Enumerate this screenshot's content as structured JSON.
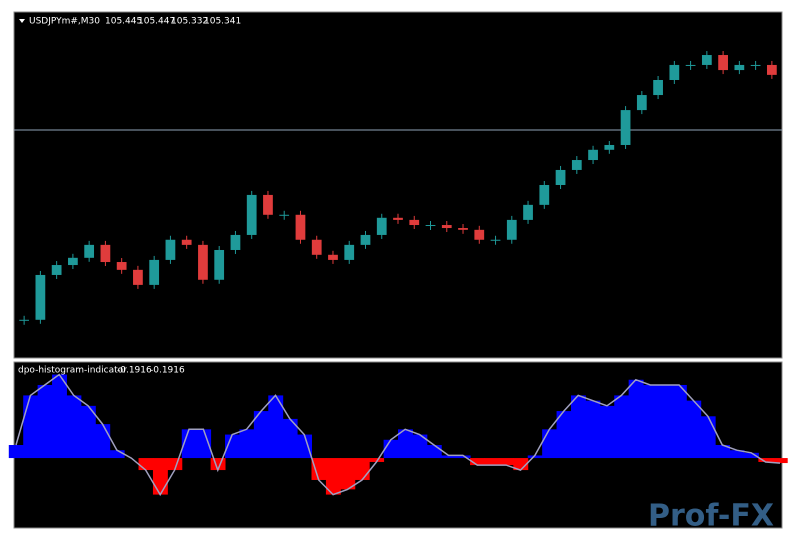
{
  "chart_data": [
    {
      "type": "candlestick",
      "title": "USDJPYm#,M30",
      "readout": [
        105.445,
        105.447,
        105.332,
        105.341
      ],
      "values": [
        104.527,
        104.676,
        104.709,
        104.733,
        104.776,
        104.719,
        104.693,
        104.643,
        104.726,
        104.793,
        104.776,
        104.66,
        104.759,
        104.809,
        104.942,
        104.876,
        104.876,
        104.793,
        104.743,
        104.726,
        104.776,
        104.809,
        104.866,
        104.859,
        104.842,
        104.842,
        104.832,
        104.826,
        104.793,
        104.793,
        104.859,
        104.909,
        104.975,
        105.025,
        105.058,
        105.092,
        105.108,
        105.224,
        105.274,
        105.324,
        105.374,
        105.374,
        105.407,
        105.357,
        105.374,
        105.374,
        105.341
      ],
      "ylim": [
        104.4,
        105.55
      ],
      "level": 105.158,
      "up_color": "#1f9a9a",
      "down_color": "#e03c3c"
    },
    {
      "type": "histogram-area",
      "title": "dpo-histogram-indicator",
      "readout": [
        -0.1916,
        -0.1916
      ],
      "values": [
        0.5,
        2.4,
        2.8,
        3.2,
        2.4,
        2.0,
        1.3,
        0.3,
        0,
        -0.46,
        -1.4,
        -0.46,
        1.1,
        1.1,
        -0.46,
        0.9,
        1.1,
        1.8,
        2.4,
        1.5,
        0.9,
        -0.84,
        -1.4,
        -1.2,
        -0.84,
        -0.15,
        0.7,
        1.1,
        0.9,
        0.5,
        0.1,
        0.1,
        -0.27,
        -0.27,
        -0.27,
        -0.46,
        0.1,
        1.1,
        1.8,
        2.4,
        2.2,
        2.0,
        2.4,
        3.0,
        2.8,
        2.8,
        2.8,
        2.2,
        1.6,
        0.5,
        0.3,
        0.2,
        -0.15,
        -0.1916
      ],
      "ylim": [
        -2.68,
        3.68
      ],
      "up_color": "#0000ff",
      "down_color": "#ff0000",
      "line_color": "#a0a0c0"
    }
  ],
  "watermark": "Prof-FX"
}
